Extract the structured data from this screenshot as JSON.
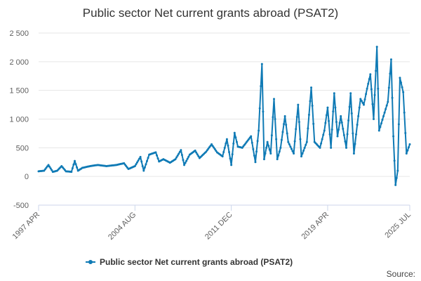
{
  "title": "Public sector Net current grants abroad (PSAT2)",
  "source_label": "Source:",
  "legend": {
    "label": "Public sector Net current grants abroad (PSAT2)"
  },
  "colors": {
    "series": "#0f7ab5",
    "grid": "#e6e6e6",
    "axis": "#ccd6eb"
  },
  "chart_data": {
    "type": "line",
    "title": "Public sector Net current grants abroad (PSAT2)",
    "series": [
      {
        "name": "Public sector Net current grants abroad (PSAT2)",
        "x_start": "1997-04",
        "x_end": "2025-07",
        "frequency": "monthly",
        "anchors": [
          [
            "1997-04",
            90
          ],
          [
            "1997-09",
            100
          ],
          [
            "1998-01",
            200
          ],
          [
            "1998-05",
            80
          ],
          [
            "1998-09",
            100
          ],
          [
            "1999-01",
            180
          ],
          [
            "1999-05",
            90
          ],
          [
            "1999-10",
            80
          ],
          [
            "2000-01",
            270
          ],
          [
            "2000-04",
            100
          ],
          [
            "2000-08",
            150
          ],
          [
            "2001-03",
            180
          ],
          [
            "2001-10",
            200
          ],
          [
            "2002-06",
            180
          ],
          [
            "2003-03",
            200
          ],
          [
            "2003-10",
            230
          ],
          [
            "2004-02",
            130
          ],
          [
            "2004-08",
            180
          ],
          [
            "2005-01",
            340
          ],
          [
            "2005-04",
            100
          ],
          [
            "2005-09",
            380
          ],
          [
            "2006-03",
            420
          ],
          [
            "2006-06",
            260
          ],
          [
            "2006-10",
            300
          ],
          [
            "2007-04",
            240
          ],
          [
            "2007-09",
            300
          ],
          [
            "2008-02",
            460
          ],
          [
            "2008-05",
            200
          ],
          [
            "2008-10",
            380
          ],
          [
            "2009-03",
            450
          ],
          [
            "2009-07",
            320
          ],
          [
            "2010-01",
            430
          ],
          [
            "2010-06",
            560
          ],
          [
            "2010-11",
            420
          ],
          [
            "2011-04",
            350
          ],
          [
            "2011-08",
            650
          ],
          [
            "2011-12",
            200
          ],
          [
            "2012-03",
            760
          ],
          [
            "2012-06",
            520
          ],
          [
            "2012-10",
            500
          ],
          [
            "2013-02",
            600
          ],
          [
            "2013-06",
            700
          ],
          [
            "2013-10",
            250
          ],
          [
            "2014-01",
            800
          ],
          [
            "2014-04",
            1960
          ],
          [
            "2014-06",
            300
          ],
          [
            "2014-09",
            600
          ],
          [
            "2014-12",
            400
          ],
          [
            "2015-03",
            1350
          ],
          [
            "2015-06",
            300
          ],
          [
            "2015-09",
            500
          ],
          [
            "2016-01",
            1050
          ],
          [
            "2016-04",
            600
          ],
          [
            "2016-09",
            400
          ],
          [
            "2017-01",
            1250
          ],
          [
            "2017-04",
            350
          ],
          [
            "2017-09",
            600
          ],
          [
            "2018-01",
            1550
          ],
          [
            "2018-04",
            600
          ],
          [
            "2018-09",
            500
          ],
          [
            "2019-01",
            800
          ],
          [
            "2019-04",
            1200
          ],
          [
            "2019-07",
            500
          ],
          [
            "2019-10",
            1450
          ],
          [
            "2020-01",
            700
          ],
          [
            "2020-04",
            1050
          ],
          [
            "2020-09",
            500
          ],
          [
            "2021-01",
            1450
          ],
          [
            "2021-04",
            400
          ],
          [
            "2021-07",
            900
          ],
          [
            "2021-10",
            1350
          ],
          [
            "2022-01",
            1250
          ],
          [
            "2022-04",
            1530
          ],
          [
            "2022-07",
            1780
          ],
          [
            "2022-10",
            1000
          ],
          [
            "2023-01",
            2260
          ],
          [
            "2023-03",
            800
          ],
          [
            "2023-07",
            1050
          ],
          [
            "2023-11",
            1300
          ],
          [
            "2024-02",
            2040
          ],
          [
            "2024-04",
            700
          ],
          [
            "2024-06",
            -150
          ],
          [
            "2024-08",
            100
          ],
          [
            "2024-10",
            1720
          ],
          [
            "2025-01",
            1470
          ],
          [
            "2025-04",
            400
          ],
          [
            "2025-07",
            560
          ]
        ]
      }
    ],
    "x_tick_labels": [
      "1997 APR",
      "2004 AUG",
      "2011 DEC",
      "2019 APR",
      "2025 JUL"
    ],
    "x_ticks": [
      "1997-04",
      "2004-08",
      "2011-12",
      "2019-04",
      "2025-07"
    ],
    "y_ticks": [
      -500,
      0,
      500,
      1000,
      1500,
      2000,
      2500
    ],
    "y_tick_labels": [
      "-500",
      "0",
      "500",
      "1 000",
      "1 500",
      "2 000",
      "2 500"
    ],
    "ylim": [
      -500,
      2500
    ],
    "grid": true,
    "legend_position": "bottom-center"
  }
}
